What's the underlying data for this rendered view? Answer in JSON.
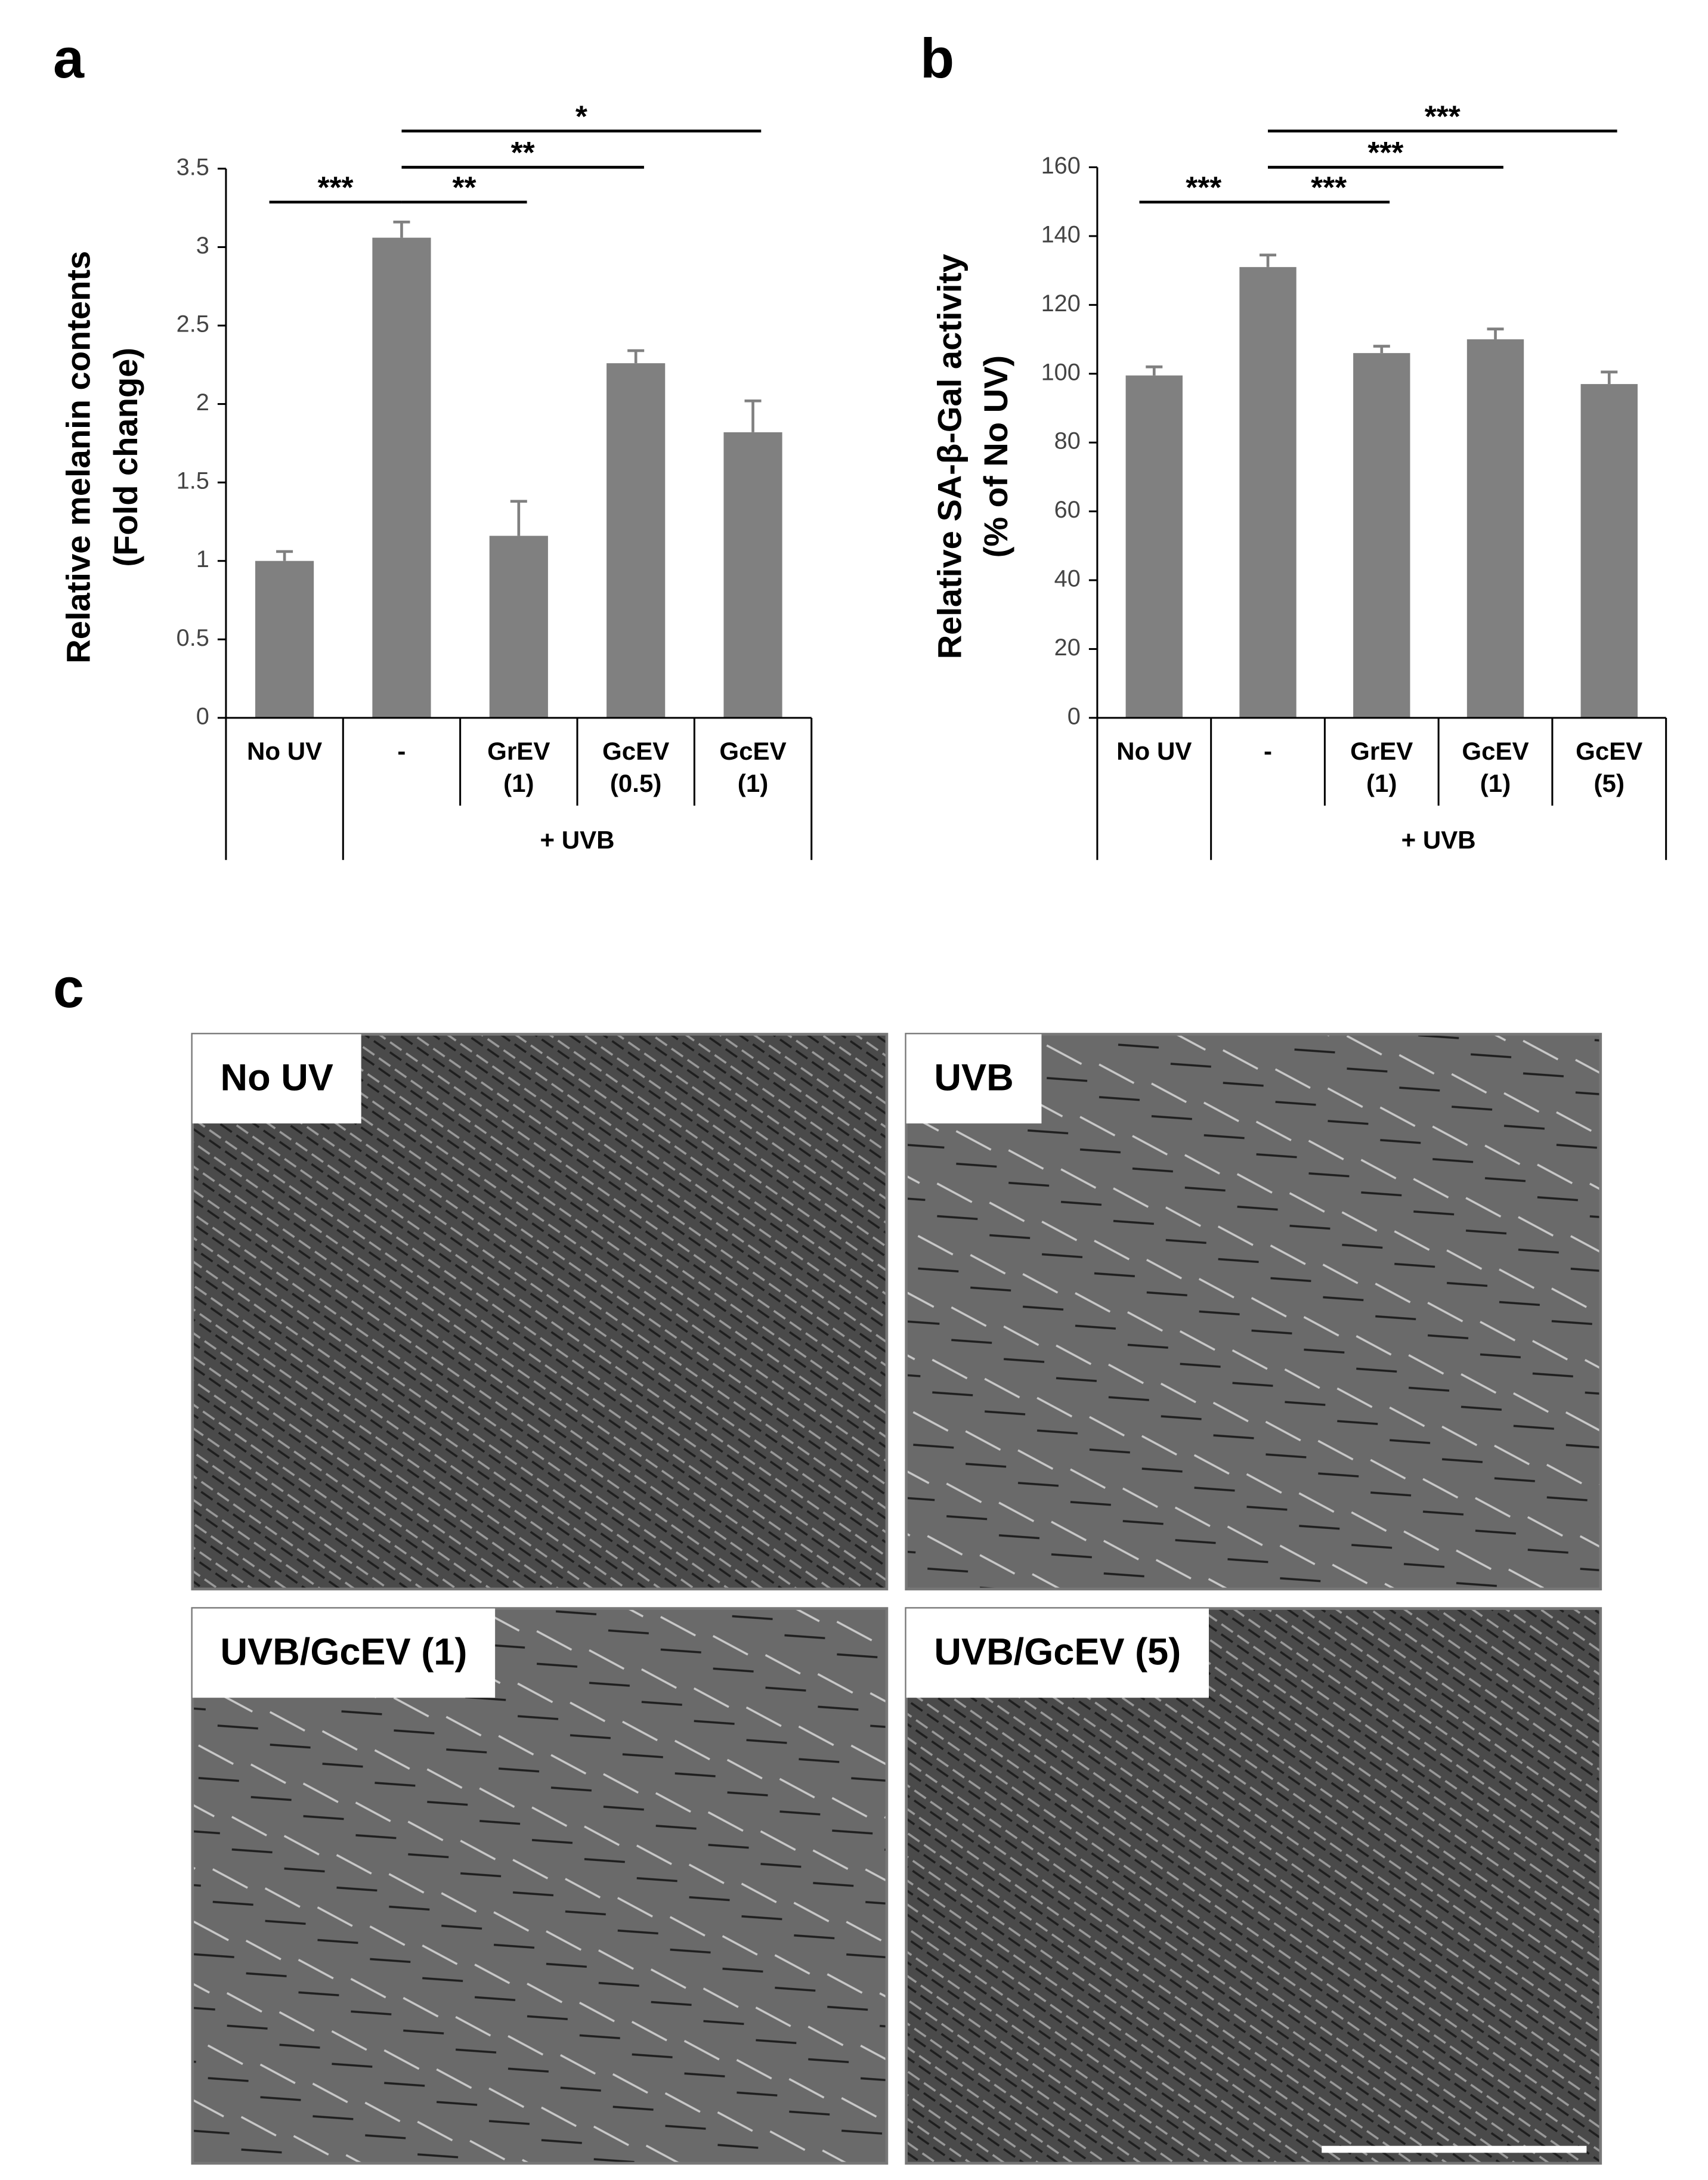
{
  "panel_labels": [
    "a",
    "b",
    "c"
  ],
  "chart_data": [
    {
      "type": "bar",
      "y_label": [
        "Relative melanin contents",
        "(Fold change)"
      ],
      "categories": [
        "No UV",
        "-",
        "GrEV\n(1)",
        "GcEV\n(0.5)",
        "GcEV\n(1)"
      ],
      "group_label": "+ UVB",
      "values": [
        1.0,
        3.06,
        1.16,
        2.26,
        1.82
      ],
      "errors": [
        0.06,
        0.1,
        0.22,
        0.08,
        0.2
      ],
      "color": "#808080",
      "ylim": [
        0,
        3.5
      ],
      "yticks": [
        0,
        0.5,
        1,
        1.5,
        2,
        2.5,
        3,
        3.5
      ],
      "annotations": [
        "***",
        "**",
        "**",
        "*"
      ]
    },
    {
      "type": "bar",
      "y_label": [
        "Relative SA-β-Gal activity",
        "(% of No UV)"
      ],
      "categories": [
        "No UV",
        "-",
        "GrEV\n(1)",
        "GcEV\n(1)",
        "GcEV\n(5)"
      ],
      "group_label": "+ UVB",
      "values": [
        99.5,
        131,
        106,
        110,
        97
      ],
      "errors": [
        2.5,
        3.5,
        2,
        3,
        3.5
      ],
      "color": "#808080",
      "ylim": [
        0,
        160
      ],
      "yticks": [
        0,
        20,
        40,
        60,
        80,
        100,
        120,
        140,
        160
      ],
      "annotations": [
        "***",
        "***",
        "***",
        "***"
      ]
    }
  ],
  "images": {
    "labels": [
      "No UV",
      "UVB",
      "UVB/GcEV (1)",
      "UVB/GcEV (5)"
    ]
  }
}
